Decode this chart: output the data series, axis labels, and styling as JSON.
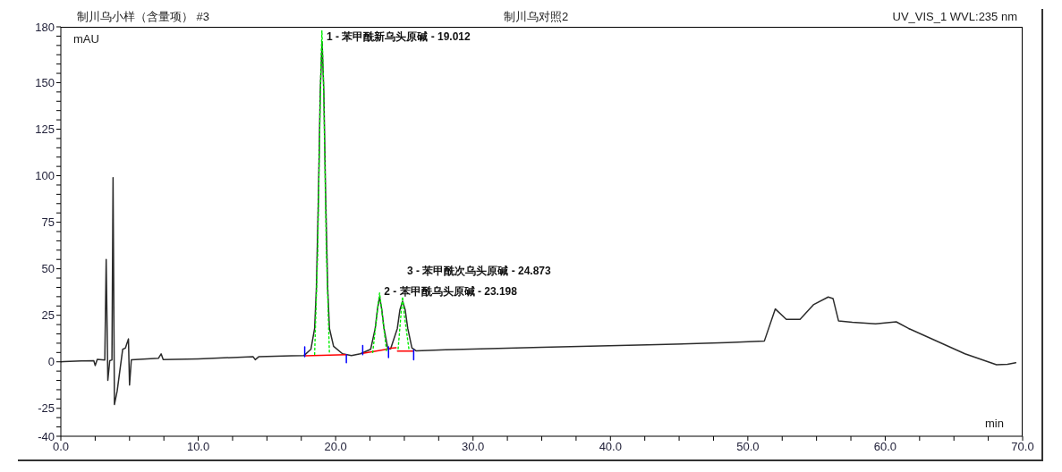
{
  "chart_data": {
    "type": "line",
    "title": "制川乌小样（含量项） #3",
    "subtitle": "制川乌对照2",
    "xlabel": "min",
    "ylabel": "mAU",
    "annotations": [
      "UV_VIS_1 WVL:235 nm",
      {
        "text": "1 - 苯甲酰新乌头原碱 - 19.012",
        "x": 19.012,
        "y": 172
      },
      {
        "text": "2 - 苯甲酰乌头原碱 - 23.198",
        "x": 23.198,
        "y": 35
      },
      {
        "text": "3 - 苯甲酰次乌头原碱 - 24.873",
        "x": 24.873,
        "y": 32.5
      }
    ],
    "xlim": [
      0,
      70
    ],
    "xticks": [
      {
        "value": 0,
        "label": "0.0"
      },
      {
        "value": 2.5,
        "label": null
      },
      {
        "value": 5,
        "label": null
      },
      {
        "value": 7.5,
        "label": null
      },
      {
        "value": 10,
        "label": "10.0"
      },
      {
        "value": 12.5,
        "label": null
      },
      {
        "value": 15,
        "label": null
      },
      {
        "value": 17.5,
        "label": null
      },
      {
        "value": 20,
        "label": "20.0"
      },
      {
        "value": 22.5,
        "label": null
      },
      {
        "value": 25,
        "label": null
      },
      {
        "value": 27.5,
        "label": null
      },
      {
        "value": 30,
        "label": "30.0"
      },
      {
        "value": 32.5,
        "label": null
      },
      {
        "value": 35,
        "label": null
      },
      {
        "value": 37.5,
        "label": null
      },
      {
        "value": 40,
        "label": "40.0"
      },
      {
        "value": 42.5,
        "label": null
      },
      {
        "value": 45,
        "label": null
      },
      {
        "value": 47.5,
        "label": null
      },
      {
        "value": 50,
        "label": "50.0"
      },
      {
        "value": 52.5,
        "label": null
      },
      {
        "value": 55,
        "label": null
      },
      {
        "value": 57.5,
        "label": null
      },
      {
        "value": 60,
        "label": "60.0"
      },
      {
        "value": 62.5,
        "label": null
      },
      {
        "value": 65,
        "label": null
      },
      {
        "value": 67.5,
        "label": null
      },
      {
        "value": 70,
        "label": "70.0"
      }
    ],
    "ylim": [
      -40,
      180
    ],
    "yticks": [
      -40,
      {
        "value": -35,
        "label": null
      },
      {
        "value": -30,
        "label": null
      },
      -25,
      {
        "value": -20,
        "label": null
      },
      {
        "value": -15,
        "label": null
      },
      {
        "value": -10,
        "label": null
      },
      {
        "value": -5,
        "label": null
      },
      0,
      {
        "value": 5,
        "label": null
      },
      {
        "value": 10,
        "label": null
      },
      {
        "value": 15,
        "label": null
      },
      {
        "value": 20,
        "label": null
      },
      25,
      {
        "value": 30,
        "label": null
      },
      {
        "value": 35,
        "label": null
      },
      {
        "value": 40,
        "label": null
      },
      {
        "value": 45,
        "label": null
      },
      50,
      {
        "value": 55,
        "label": null
      },
      {
        "value": 60,
        "label": null
      },
      {
        "value": 65,
        "label": null
      },
      {
        "value": 70,
        "label": null
      },
      75,
      {
        "value": 80,
        "label": null
      },
      {
        "value": 85,
        "label": null
      },
      {
        "value": 90,
        "label": null
      },
      {
        "value": 95,
        "label": null
      },
      100,
      {
        "value": 105,
        "label": null
      },
      {
        "value": 110,
        "label": null
      },
      {
        "value": 115,
        "label": null
      },
      {
        "value": 120,
        "label": null
      },
      125,
      {
        "value": 130,
        "label": null
      },
      {
        "value": 135,
        "label": null
      },
      {
        "value": 140,
        "label": null
      },
      {
        "value": 145,
        "label": null
      },
      150,
      {
        "value": 155,
        "label": null
      },
      {
        "value": 160,
        "label": null
      },
      {
        "value": 165,
        "label": null
      },
      {
        "value": 170,
        "label": null
      },
      {
        "value": 175,
        "label": null
      },
      180
    ],
    "series": [
      {
        "color": "#2b2b2b",
        "line_style": "solid",
        "x": [
          0,
          0.2,
          1.5,
          2.4,
          2.5,
          2.65,
          3.2,
          3.3,
          3.42,
          3.56,
          3.72,
          3.8,
          3.9,
          4.1,
          4.5,
          4.7,
          4.92,
          5.0,
          5.13,
          7.1,
          7.3,
          7.45,
          10,
          14.0,
          14.15,
          14.4,
          16.8,
          17.7,
          18.2,
          18.47,
          18.6,
          18.75,
          18.88,
          19.012,
          19.14,
          19.27,
          19.42,
          19.55,
          19.85,
          20.5,
          21.15,
          21.8,
          22.55,
          22.88,
          23.04,
          23.198,
          23.36,
          23.52,
          23.8,
          24.0,
          24.49,
          24.68,
          24.873,
          25.06,
          25.25,
          25.55,
          25.85,
          28,
          35,
          42.7,
          48.5,
          51.2,
          52.0,
          52.8,
          53.8,
          54.8,
          55.85,
          56.2,
          56.6,
          57.6,
          59.3,
          60.8,
          61.7,
          65.8,
          68.1,
          68.9,
          69.5
        ],
        "values": [
          0,
          0.1,
          0.5,
          0.6,
          -2,
          1.3,
          1,
          55,
          -10,
          0.6,
          1,
          99,
          -23,
          -15.7,
          6.7,
          7.4,
          12.3,
          -12.5,
          1.1,
          1.9,
          4.3,
          1.2,
          1.6,
          2.7,
          1.1,
          2.7,
          3.2,
          3.4,
          6.7,
          17.9,
          40,
          90,
          145,
          172,
          145,
          90,
          40,
          17.9,
          8.3,
          4.3,
          3.4,
          4.3,
          6.7,
          17.9,
          28,
          35,
          28,
          17.9,
          7,
          7,
          17.9,
          28,
          32.5,
          28,
          17.9,
          7.5,
          5.9,
          6.5,
          7.8,
          9.1,
          10.3,
          11.1,
          28.4,
          22.8,
          22.8,
          30.8,
          34.8,
          34,
          22,
          21.2,
          20.4,
          21.5,
          17.9,
          4.3,
          -1.6,
          -1.3,
          -0.5
        ]
      },
      {
        "color": "#ff0000",
        "line_style": "solid",
        "x": [
          17.75,
          20.78,
          21.4,
          21.97,
          23.8,
          23.82,
          23.85,
          24.4,
          24.45,
          24.5,
          25.68
        ],
        "values": [
          3.2,
          3.8,
          null,
          4.5,
          6.8,
          null,
          7.2,
          7.5,
          null,
          5.8,
          5.8
        ]
      },
      {
        "color": "#0000ff",
        "line_style": "solid",
        "x": [
          17.75,
          17.75,
          19.3,
          20.78,
          20.78,
          21.4,
          21.97,
          21.97,
          22.9,
          23.85,
          23.85,
          24.8,
          25.68,
          25.68
        ],
        "values": [
          8,
          2.7,
          null,
          3.8,
          -0.5,
          null,
          8.7,
          3.8,
          null,
          8,
          2.3,
          null,
          6.4,
          1.1
        ]
      },
      {
        "color": "#00ee00",
        "line_style": "dotted",
        "x": [
          18.47,
          18.7,
          18.9,
          19.0,
          19.12,
          19.32,
          19.55,
          19.6,
          22.7,
          23.0,
          23.198,
          23.4,
          23.7,
          23.9,
          24.55,
          24.75,
          24.87,
          25.0,
          25.35
        ],
        "values": [
          4,
          60,
          150,
          178,
          150,
          60,
          4,
          null,
          5,
          25,
          37,
          25,
          6,
          null,
          7,
          25,
          35,
          25,
          6
        ]
      }
    ]
  }
}
